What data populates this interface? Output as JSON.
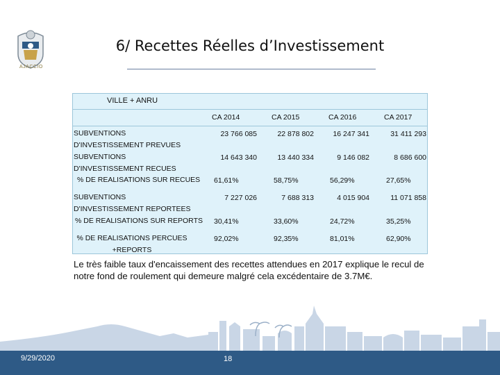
{
  "slide": {
    "title": "6/ Recettes  Réelles d’Investissement",
    "date": "9/29/2020",
    "page_number": "18",
    "note": "Le très faible taux d'encaissement des recettes attendues en 2017 explique le recul de notre fond de roulement qui demeure malgré cela excédentaire de 3.7M€."
  },
  "logo": {
    "caption": "AJACCIO",
    "icon": "city-coat-of-arms"
  },
  "table": {
    "caption": "VILLE + ANRU",
    "columns": [
      "CA 2014",
      "CA 2015",
      "CA 2016",
      "CA 2017"
    ],
    "rows": [
      {
        "label": "SUBVENTIONS D'INVESTISSEMENT PREVUES",
        "values": [
          "23 766 085",
          "22 878 802",
          "16 247 341",
          "31 411 293"
        ]
      },
      {
        "label": "SUBVENTIONS D'INVESTISSEMENT RECUES",
        "values": [
          "14 643 340",
          "13 440 334",
          "9 146 082",
          "8 686 600"
        ]
      },
      {
        "label": "% DE REALISATIONS SUR RECUES",
        "values": [
          "61,61%",
          "58,75%",
          "56,29%",
          "27,65%"
        ]
      },
      {
        "label": "SUBVENTIONS D'INVESTISSEMENT REPORTEES",
        "values": [
          "7 227 026",
          "7 688 313",
          "4 015 904",
          "11 071 858"
        ]
      },
      {
        "label": "% DE REALISATIONS SUR REPORTS",
        "values": [
          "30,41%",
          "33,60%",
          "24,72%",
          "35,25%"
        ]
      },
      {
        "label": "% DE REALISATIONS PERCUES +REPORTS",
        "values": [
          "92,02%",
          "92,35%",
          "81,01%",
          "62,90%"
        ]
      }
    ]
  },
  "colors": {
    "table_bg": "#dff2fa",
    "footer": "#2e5a86",
    "skyline": "#c9d6e6"
  }
}
